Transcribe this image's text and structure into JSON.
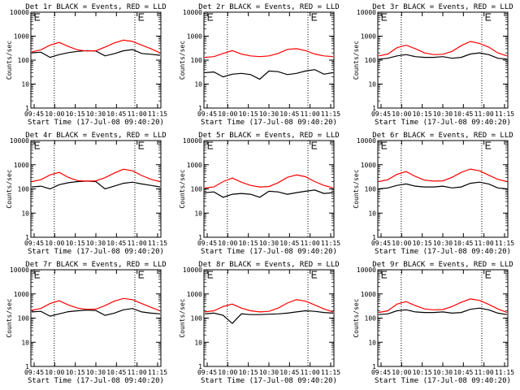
{
  "chart_data": [
    {
      "type": "line",
      "title": "Det 1r BLACK = Events, RED = LLD",
      "xlabel": "Start Time (17-Jul-08 09:40:20)",
      "ylabel": "Counts/sec",
      "yscale": "log",
      "ylim": [
        1,
        10000
      ],
      "xticks": [
        "09:45",
        "10:00",
        "10:15",
        "10:30",
        "10:45",
        "11:00",
        "11:15"
      ],
      "yticks": [
        "1",
        "10",
        "100",
        "1000",
        "10000"
      ],
      "series": [
        {
          "color": "#000000",
          "values": [
            200,
            215,
            130,
            170,
            205,
            230,
            250,
            240,
            150,
            185,
            245,
            275,
            190,
            175,
            160
          ]
        },
        {
          "color": "#ff0000",
          "values": [
            220,
            270,
            420,
            550,
            370,
            270,
            240,
            245,
            350,
            520,
            680,
            600,
            420,
            300,
            200
          ]
        }
      ]
    },
    {
      "type": "line",
      "title": "Det 2r BLACK = Events, RED = LLD",
      "xlabel": "Start Time (17-Jul-08 09:40:20)",
      "ylabel": "Counts/sec",
      "yscale": "log",
      "ylim": [
        1,
        10000
      ],
      "xticks": [
        "09:45",
        "10:00",
        "10:15",
        "10:30",
        "10:45",
        "11:00",
        "11:15"
      ],
      "yticks": [
        "1",
        "10",
        "100",
        "1000",
        "10000"
      ],
      "series": [
        {
          "color": "#000000",
          "values": [
            30,
            32,
            20,
            26,
            28,
            25,
            16,
            35,
            33,
            25,
            28,
            35,
            40,
            26,
            30
          ]
        },
        {
          "color": "#ff0000",
          "values": [
            130,
            140,
            190,
            250,
            180,
            150,
            140,
            150,
            190,
            280,
            300,
            250,
            180,
            150,
            140
          ]
        }
      ]
    },
    {
      "type": "line",
      "title": "Det 3r BLACK = Events, RED = LLD",
      "xlabel": "Start Time (17-Jul-08 09:40:20)",
      "ylabel": "Counts/sec",
      "yscale": "log",
      "ylim": [
        1,
        10000
      ],
      "xticks": [
        "09:45",
        "10:00",
        "10:15",
        "10:30",
        "10:45",
        "11:00",
        "11:15"
      ],
      "yticks": [
        "1",
        "10",
        "100",
        "1000",
        "10000"
      ],
      "series": [
        {
          "color": "#000000",
          "values": [
            110,
            120,
            150,
            170,
            140,
            130,
            130,
            140,
            120,
            130,
            180,
            200,
            170,
            120,
            110
          ]
        },
        {
          "color": "#ff0000",
          "values": [
            150,
            180,
            330,
            420,
            300,
            200,
            170,
            175,
            230,
            400,
            600,
            500,
            350,
            200,
            150
          ]
        }
      ]
    },
    {
      "type": "line",
      "title": "Det 4r BLACK = Events, RED = LLD",
      "xlabel": "Start Time (17-Jul-08 09:40:20)",
      "ylabel": "Counts/sec",
      "yscale": "log",
      "ylim": [
        1,
        10000
      ],
      "xticks": [
        "09:45",
        "10:00",
        "10:15",
        "10:30",
        "10:45",
        "11:00",
        "11:15"
      ],
      "yticks": [
        "1",
        "10",
        "100",
        "1000",
        "10000"
      ],
      "series": [
        {
          "color": "#000000",
          "values": [
            120,
            130,
            100,
            150,
            180,
            200,
            210,
            200,
            100,
            130,
            170,
            190,
            160,
            140,
            120
          ]
        },
        {
          "color": "#ff0000",
          "values": [
            200,
            240,
            380,
            480,
            300,
            220,
            210,
            215,
            290,
            450,
            650,
            560,
            360,
            250,
            200
          ]
        }
      ]
    },
    {
      "type": "line",
      "title": "Det 5r BLACK = Events, RED = LLD",
      "xlabel": "Start Time (17-Jul-08 09:40:20)",
      "ylabel": "Counts/sec",
      "yscale": "log",
      "ylim": [
        1,
        10000
      ],
      "xticks": [
        "09:45",
        "10:00",
        "10:15",
        "10:30",
        "10:45",
        "11:00",
        "11:15"
      ],
      "yticks": [
        "1",
        "10",
        "100",
        "1000",
        "10000"
      ],
      "series": [
        {
          "color": "#000000",
          "values": [
            70,
            75,
            45,
            60,
            65,
            60,
            45,
            80,
            75,
            60,
            70,
            80,
            90,
            65,
            70
          ]
        },
        {
          "color": "#ff0000",
          "values": [
            110,
            120,
            200,
            280,
            190,
            140,
            120,
            125,
            180,
            300,
            380,
            320,
            200,
            140,
            110
          ]
        }
      ]
    },
    {
      "type": "line",
      "title": "Det 6r BLACK = Events, RED = LLD",
      "xlabel": "Start Time (17-Jul-08 09:40:20)",
      "ylabel": "Counts/sec",
      "yscale": "log",
      "ylim": [
        1,
        10000
      ],
      "xticks": [
        "09:45",
        "10:00",
        "10:15",
        "10:30",
        "10:45",
        "11:00",
        "11:15"
      ],
      "yticks": [
        "1",
        "10",
        "100",
        "1000",
        "10000"
      ],
      "series": [
        {
          "color": "#000000",
          "values": [
            100,
            110,
            140,
            160,
            130,
            120,
            120,
            130,
            110,
            120,
            170,
            190,
            160,
            110,
            100
          ]
        },
        {
          "color": "#ff0000",
          "values": [
            200,
            240,
            400,
            520,
            330,
            230,
            210,
            215,
            300,
            480,
            660,
            560,
            370,
            250,
            200
          ]
        }
      ]
    },
    {
      "type": "line",
      "title": "Det 7r BLACK = Events, RED = LLD",
      "xlabel": "Start Time (17-Jul-08 09:40:20)",
      "ylabel": "Counts/sec",
      "yscale": "log",
      "ylim": [
        1,
        10000
      ],
      "xticks": [
        "09:45",
        "10:00",
        "10:15",
        "10:30",
        "10:45",
        "11:00",
        "11:15"
      ],
      "yticks": [
        "1",
        "10",
        "100",
        "1000",
        "10000"
      ],
      "series": [
        {
          "color": "#000000",
          "values": [
            180,
            190,
            120,
            150,
            185,
            200,
            215,
            205,
            130,
            160,
            220,
            250,
            180,
            160,
            150
          ]
        },
        {
          "color": "#ff0000",
          "values": [
            210,
            250,
            400,
            520,
            350,
            260,
            230,
            235,
            330,
            500,
            650,
            580,
            400,
            280,
            200
          ]
        }
      ]
    },
    {
      "type": "line",
      "title": "Det 8r BLACK = Events, RED = LLD",
      "xlabel": "Start Time (17-Jul-08 09:40:20)",
      "ylabel": "Counts/sec",
      "yscale": "log",
      "ylim": [
        1,
        10000
      ],
      "xticks": [
        "09:45",
        "10:00",
        "10:15",
        "10:30",
        "10:45",
        "11:00",
        "11:15"
      ],
      "yticks": [
        "1",
        "10",
        "100",
        "1000",
        "10000"
      ],
      "series": [
        {
          "color": "#000000",
          "values": [
            150,
            160,
            130,
            60,
            150,
            140,
            140,
            145,
            150,
            160,
            180,
            200,
            190,
            170,
            160
          ]
        },
        {
          "color": "#ff0000",
          "values": [
            180,
            200,
            300,
            380,
            260,
            200,
            180,
            190,
            260,
            420,
            580,
            500,
            350,
            240,
            180
          ]
        }
      ]
    },
    {
      "type": "line",
      "title": "Det 9r BLACK = Events, RED = LLD",
      "xlabel": "Start Time (17-Jul-08 09:40:20)",
      "ylabel": "Counts/sec",
      "yscale": "log",
      "ylim": [
        1,
        10000
      ],
      "xticks": [
        "09:45",
        "10:00",
        "10:15",
        "10:30",
        "10:45",
        "11:00",
        "11:15"
      ],
      "yticks": [
        "1",
        "10",
        "100",
        "1000",
        "10000"
      ],
      "series": [
        {
          "color": "#000000",
          "values": [
            140,
            150,
            200,
            220,
            180,
            170,
            170,
            180,
            160,
            170,
            230,
            260,
            220,
            160,
            140
          ]
        },
        {
          "color": "#ff0000",
          "values": [
            170,
            200,
            380,
            480,
            330,
            240,
            220,
            225,
            300,
            450,
            620,
            540,
            370,
            240,
            170
          ]
        }
      ]
    }
  ]
}
